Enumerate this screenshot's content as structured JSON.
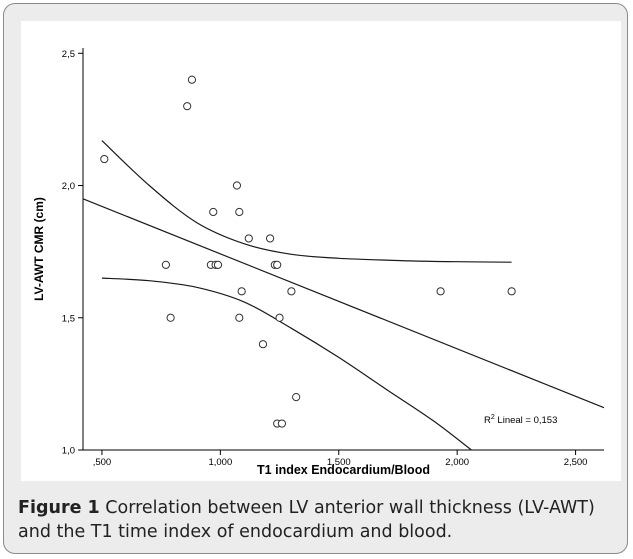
{
  "chart_data": {
    "type": "scatter",
    "xlabel": "T1 index Endocardium/Blood",
    "ylabel": "LV-AWT CMR (cm)",
    "xlim": [
      0.42,
      2.62
    ],
    "ylim": [
      1.0,
      2.52
    ],
    "x_ticks": [
      0.5,
      1.0,
      1.5,
      2.0,
      2.5
    ],
    "x_tick_labels": [
      ",500",
      "1,000",
      "1,500",
      "2,000",
      "2,500"
    ],
    "y_ticks": [
      1.0,
      1.5,
      2.0,
      2.5
    ],
    "y_tick_labels": [
      "1,0",
      "1,5",
      "2,0",
      "2,5"
    ],
    "points": [
      {
        "x": 0.51,
        "y": 2.1
      },
      {
        "x": 0.86,
        "y": 2.3
      },
      {
        "x": 0.88,
        "y": 2.4
      },
      {
        "x": 0.77,
        "y": 1.7
      },
      {
        "x": 0.79,
        "y": 1.5
      },
      {
        "x": 0.96,
        "y": 1.7
      },
      {
        "x": 0.98,
        "y": 1.7
      },
      {
        "x": 0.99,
        "y": 1.7
      },
      {
        "x": 0.97,
        "y": 1.9
      },
      {
        "x": 1.07,
        "y": 2.0
      },
      {
        "x": 1.08,
        "y": 1.9
      },
      {
        "x": 1.12,
        "y": 1.8
      },
      {
        "x": 1.21,
        "y": 1.8
      },
      {
        "x": 1.23,
        "y": 1.7
      },
      {
        "x": 1.24,
        "y": 1.7
      },
      {
        "x": 1.09,
        "y": 1.6
      },
      {
        "x": 1.08,
        "y": 1.5
      },
      {
        "x": 1.18,
        "y": 1.4
      },
      {
        "x": 1.25,
        "y": 1.5
      },
      {
        "x": 1.3,
        "y": 1.6
      },
      {
        "x": 1.32,
        "y": 1.2
      },
      {
        "x": 1.24,
        "y": 1.1
      },
      {
        "x": 1.26,
        "y": 1.1
      },
      {
        "x": 1.93,
        "y": 1.6
      },
      {
        "x": 2.23,
        "y": 1.6
      }
    ],
    "fit_line": [
      {
        "x": 0.42,
        "y": 1.95
      },
      {
        "x": 2.62,
        "y": 1.16
      }
    ],
    "ci_upper": [
      {
        "x": 0.5,
        "y": 2.17
      },
      {
        "x": 0.7,
        "y": 2.0
      },
      {
        "x": 0.9,
        "y": 1.86
      },
      {
        "x": 1.1,
        "y": 1.78
      },
      {
        "x": 1.3,
        "y": 1.74
      },
      {
        "x": 1.5,
        "y": 1.725
      },
      {
        "x": 1.8,
        "y": 1.715
      },
      {
        "x": 2.0,
        "y": 1.712
      },
      {
        "x": 2.23,
        "y": 1.71
      }
    ],
    "ci_lower": [
      {
        "x": 0.5,
        "y": 1.65
      },
      {
        "x": 0.7,
        "y": 1.64
      },
      {
        "x": 0.9,
        "y": 1.615
      },
      {
        "x": 1.1,
        "y": 1.56
      },
      {
        "x": 1.3,
        "y": 1.46
      },
      {
        "x": 1.5,
        "y": 1.35
      },
      {
        "x": 1.7,
        "y": 1.23
      },
      {
        "x": 1.9,
        "y": 1.11
      },
      {
        "x": 2.06,
        "y": 1.0
      }
    ],
    "annotation": {
      "prefix": "R",
      "sup": "2",
      "suffix": " Lineal = 0,153"
    },
    "grid": false,
    "colors": {
      "marker": "#333333",
      "line": "#1a1a1a",
      "axis": "#000000"
    }
  },
  "caption": {
    "label": "Figure 1",
    "text": " Correlation between LV anterior wall thickness (LV-AWT) and the T1 time index of endocardium and blood."
  }
}
